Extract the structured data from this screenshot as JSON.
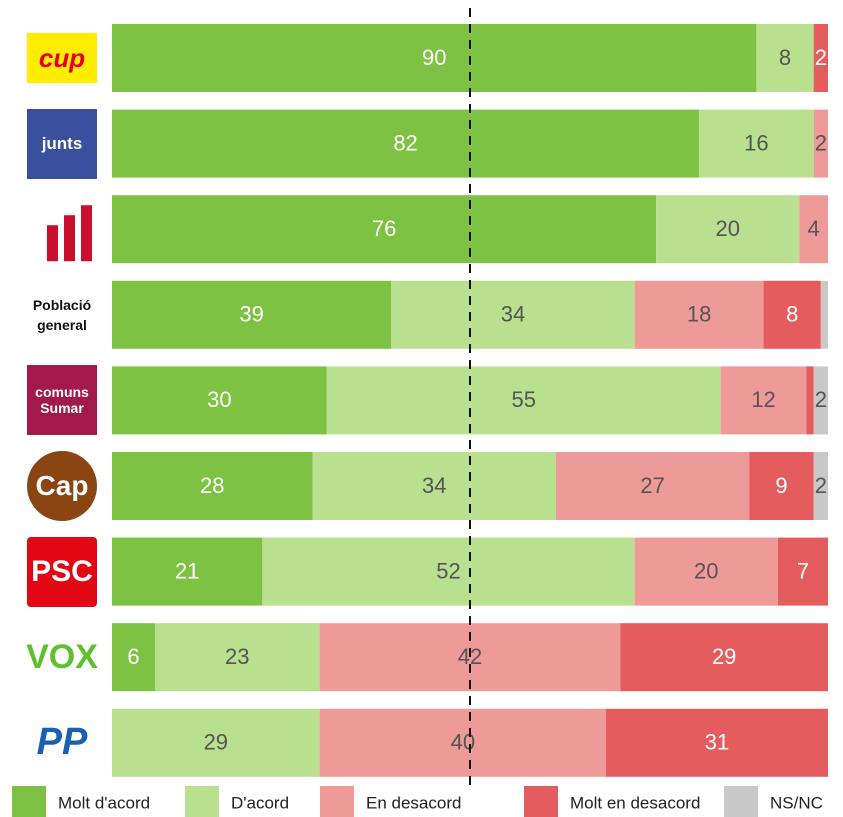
{
  "chart_data": {
    "type": "stacked-bar-horizontal",
    "categories": [
      "cup",
      "junts",
      null,
      "Població general",
      "comuns Sumar",
      "Cap",
      "PSC",
      "VOX",
      "PP"
    ],
    "series": [
      {
        "name": "Molt d'acord",
        "color": "#7dc242",
        "values": [
          90,
          82,
          76,
          39,
          30,
          28,
          21,
          6,
          0
        ]
      },
      {
        "name": "D'acord",
        "color": "#b8e08f",
        "values": [
          8,
          16,
          20,
          34,
          55,
          34,
          52,
          23,
          29
        ]
      },
      {
        "name": "En desacord",
        "color": "#ee9a98",
        "values": [
          0,
          2,
          4,
          18,
          12,
          27,
          20,
          42,
          40
        ]
      },
      {
        "name": "Molt en desacord",
        "color": "#e55c5e",
        "values": [
          2,
          0,
          0,
          8,
          1,
          9,
          7,
          29,
          31
        ]
      },
      {
        "name": "NS/NC",
        "color": "#c8c8c8",
        "values": [
          0,
          0,
          0,
          1,
          2,
          2,
          0,
          0,
          0
        ]
      }
    ],
    "xlim": [
      0,
      100
    ],
    "reference_line": 50,
    "legend": "bottom"
  }
}
